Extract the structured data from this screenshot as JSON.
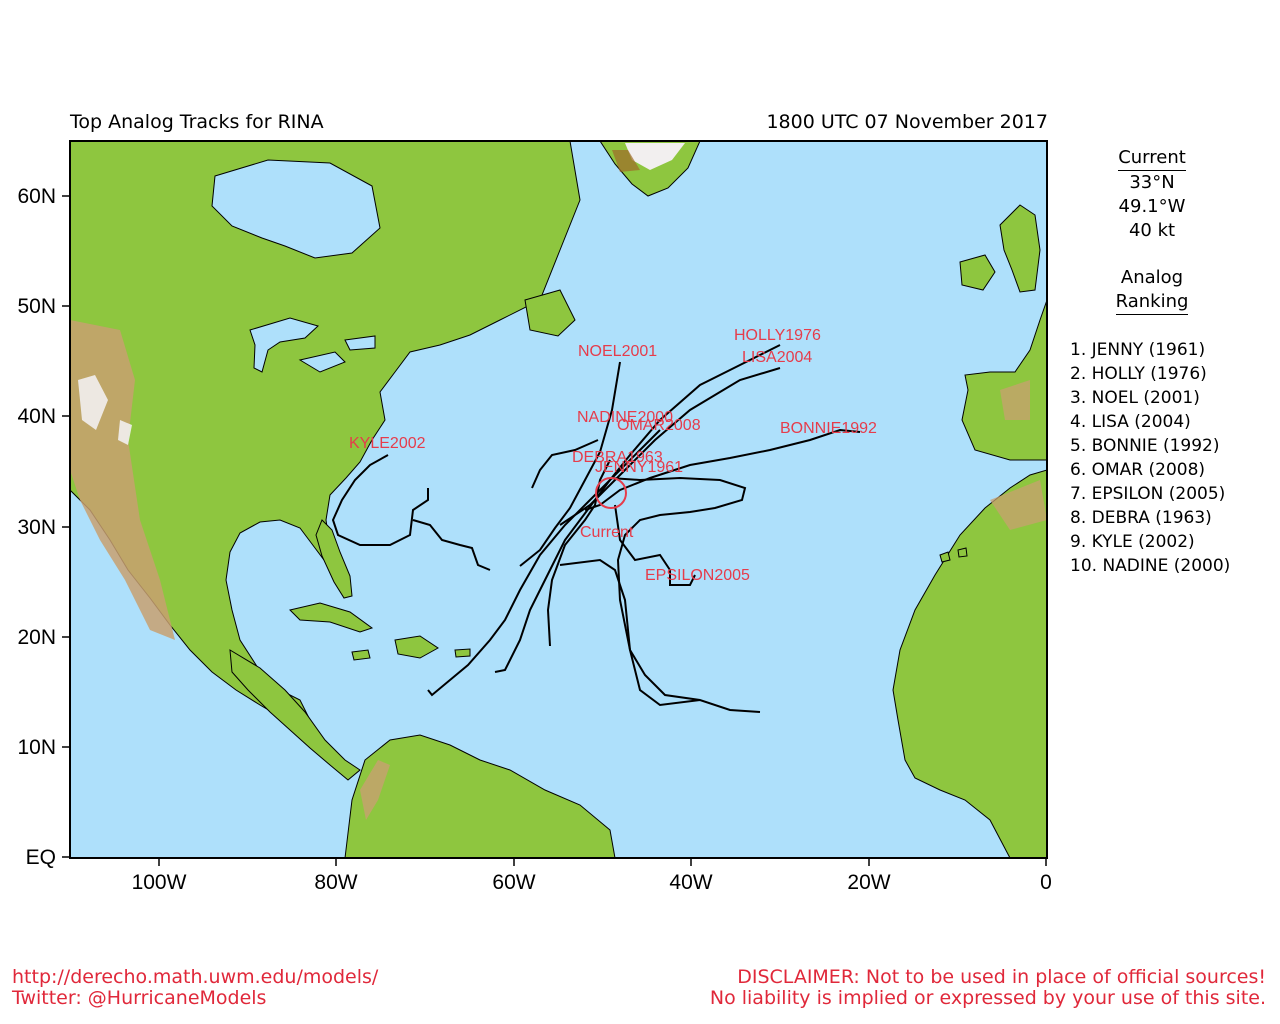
{
  "header": {
    "title": "Top Analog Tracks for RINA",
    "datetime": "1800 UTC 07 November 2017"
  },
  "map": {
    "region": "North Atlantic",
    "lat_labels": [
      "60N",
      "50N",
      "40N",
      "30N",
      "20N",
      "10N",
      "EQ"
    ],
    "lon_labels": [
      "100W",
      "80W",
      "60W",
      "40W",
      "20W",
      "0"
    ],
    "colors": {
      "ocean": "#aee0fb",
      "land_green": "#8ec63f",
      "track": "#000000",
      "label": "#e63c4b",
      "current_circle": "#e63c4b"
    }
  },
  "current": {
    "heading": "Current",
    "lat": "33°N",
    "lon": "49.1°W",
    "intensity": "40 kt",
    "marker_label": "Current"
  },
  "analog": {
    "heading_line1": "Analog",
    "heading_line2": "Ranking",
    "items": [
      "1.  JENNY (1961)",
      "2.  HOLLY (1976)",
      "3.  NOEL (2001)",
      "4.  LISA (2004)",
      "5.  BONNIE (1992)",
      "6.  OMAR (2008)",
      "7.  EPSILON (2005)",
      "8.  DEBRA (1963)",
      "9.  KYLE (2002)",
      "10. NADINE (2000)"
    ]
  },
  "track_labels": [
    "NOEL2001",
    "HOLLY1976",
    "LISA2004",
    "NADINE2000",
    "OMAR2008",
    "BONNIE1992",
    "KYLE2002",
    "DEBRA1963",
    "JENNY1961",
    "EPSILON2005"
  ],
  "footer": {
    "url": "http://derecho.math.uwm.edu/models/",
    "twitter": "Twitter: @HurricaneModels",
    "disclaimer1": "DISCLAIMER: Not to be used in place of official sources!",
    "disclaimer2": "No liability is implied or expressed by your use of this site."
  }
}
